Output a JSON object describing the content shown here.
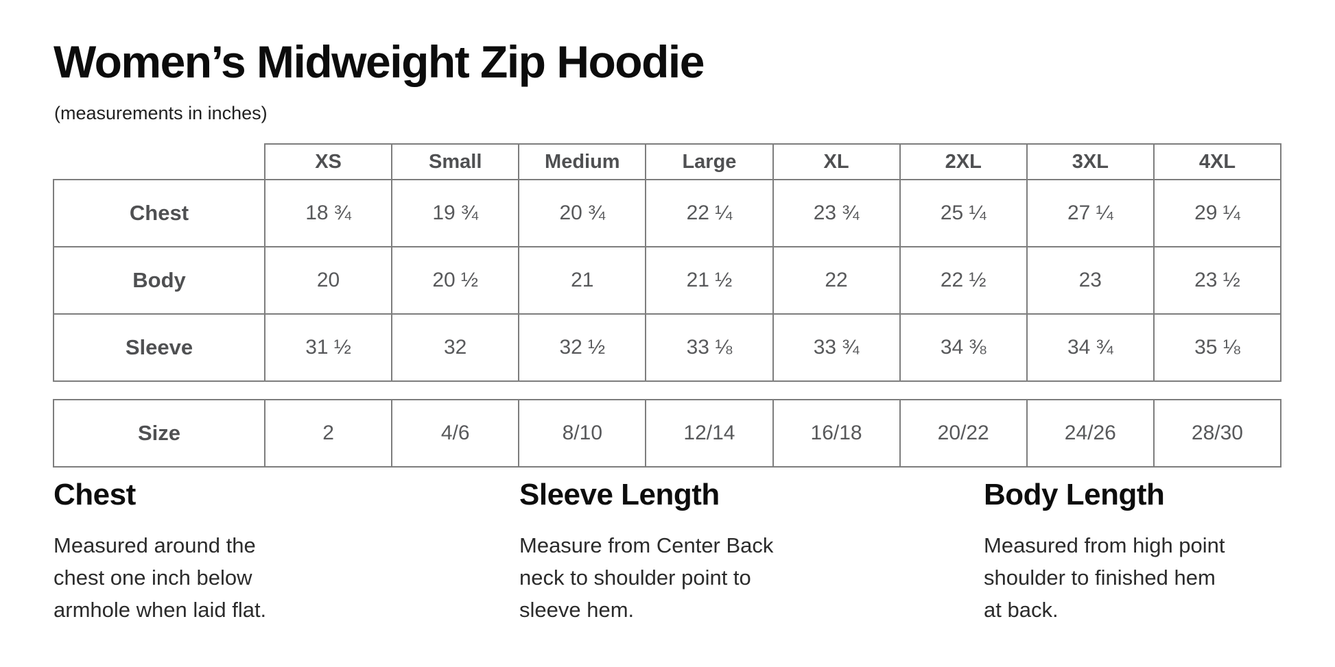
{
  "page": {
    "title": "Women’s Midweight Zip Hoodie",
    "subtitle": "(measurements in inches)"
  },
  "size_chart": {
    "columns": [
      "XS",
      "Small",
      "Medium",
      "Large",
      "XL",
      "2XL",
      "3XL",
      "4XL"
    ],
    "rows": [
      {
        "label": "Chest",
        "values": [
          "18 ¾",
          "19 ¾",
          "20 ¾",
          "22 ¼",
          "23 ¾",
          "25 ¼",
          "27 ¼",
          "29 ¼"
        ]
      },
      {
        "label": "Body",
        "values": [
          "20",
          "20 ½",
          "21",
          "21 ½",
          "22",
          "22 ½",
          "23",
          "23 ½"
        ]
      },
      {
        "label": "Sleeve",
        "values": [
          "31 ½",
          "32",
          "32 ½",
          "33 ⅛",
          "33 ¾",
          "34 ⅜",
          "34 ¾",
          "35 ⅛"
        ]
      }
    ]
  },
  "numeric_sizes": {
    "label": "Size",
    "values": [
      "2",
      "4/6",
      "8/10",
      "12/14",
      "16/18",
      "20/22",
      "24/26",
      "28/30"
    ]
  },
  "definitions": [
    {
      "heading": "Chest",
      "lines": [
        "Measured around the",
        "chest one inch below",
        "armhole when laid flat."
      ]
    },
    {
      "heading": "Sleeve Length",
      "lines": [
        "Measure from Center Back",
        "neck to shoulder point to",
        "sleeve hem."
      ]
    },
    {
      "heading": "Body Length",
      "lines": [
        "Measured from high point",
        "shoulder to finished hem",
        "at back."
      ]
    }
  ],
  "colors": {
    "border": "#7d7d7d",
    "cell_text": "#58595b",
    "label_text": "#4f5052",
    "heading_text": "#0d0d0d"
  }
}
